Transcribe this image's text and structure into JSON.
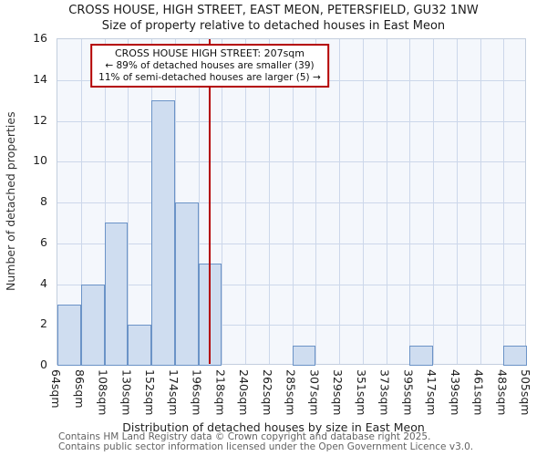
{
  "title_line1": "CROSS HOUSE, HIGH STREET, EAST MEON, PETERSFIELD, GU32 1NW",
  "title_line2": "Size of property relative to detached houses in East Meon",
  "ylabel": "Number of detached properties",
  "xlabel": "Distribution of detached houses by size in East Meon",
  "annotation": {
    "line1": "CROSS HOUSE HIGH STREET: 207sqm",
    "line2": "← 89% of detached houses are smaller (39)",
    "line3": "11% of semi-detached houses are larger (5) →"
  },
  "footer_line1": "Contains HM Land Registry data © Crown copyright and database right 2025.",
  "footer_line2": "Contains public sector information licensed under the Open Government Licence v3.0.",
  "chart_data": {
    "type": "bar",
    "title": "CROSS HOUSE, HIGH STREET, EAST MEON, PETERSFIELD, GU32 1NW",
    "subtitle": "Size of property relative to detached houses in East Meon",
    "xlabel": "Distribution of detached houses by size in East Meon",
    "ylabel": "Number of detached properties",
    "grid": true,
    "bin_edges_sqm": [
      64,
      86,
      108,
      130,
      152,
      174,
      196,
      218,
      240,
      262,
      285,
      307,
      329,
      351,
      373,
      395,
      417,
      439,
      461,
      483,
      505
    ],
    "bin_labels": [
      "64sqm",
      "86sqm",
      "108sqm",
      "130sqm",
      "152sqm",
      "174sqm",
      "196sqm",
      "218sqm",
      "240sqm",
      "262sqm",
      "285sqm",
      "307sqm",
      "329sqm",
      "351sqm",
      "373sqm",
      "395sqm",
      "417sqm",
      "439sqm",
      "461sqm",
      "483sqm",
      "505sqm"
    ],
    "values": [
      3,
      4,
      7,
      2,
      13,
      8,
      5,
      0,
      0,
      0,
      1,
      0,
      0,
      0,
      0,
      1,
      0,
      0,
      0,
      1
    ],
    "ylim": [
      0,
      16
    ],
    "ytick_step": 2,
    "marker_value_sqm": 207,
    "colors": {
      "bar_fill": "#cfddf0",
      "bar_border": "#6b93c7",
      "marker_line": "#b40000",
      "annotation_border": "#b40000",
      "grid_line": "#ccd7ea",
      "plot_bg": "#f4f7fc"
    }
  }
}
